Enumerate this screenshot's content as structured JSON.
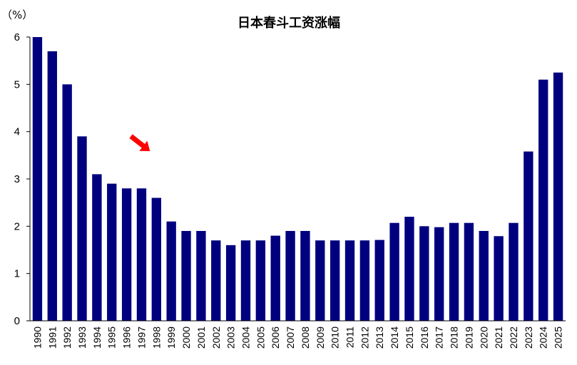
{
  "chart_data": {
    "type": "bar",
    "title": "日本春斗工资涨幅",
    "unit_label": "（%）",
    "xlabel": "",
    "ylabel": "",
    "ylim": [
      0,
      6
    ],
    "yticks": [
      0,
      1,
      2,
      3,
      4,
      5,
      6
    ],
    "grid": false,
    "bar_color": "#00007F",
    "annotation_color": "#FF0000",
    "annotation": {
      "type": "arrow",
      "points_to_category": "1998"
    },
    "categories": [
      "1990",
      "1991",
      "1992",
      "1993",
      "1994",
      "1995",
      "1996",
      "1997",
      "1998",
      "1999",
      "2000",
      "2001",
      "2002",
      "2003",
      "2004",
      "2005",
      "2006",
      "2007",
      "2008",
      "2009",
      "2010",
      "2011",
      "2012",
      "2013",
      "2014",
      "2015",
      "2016",
      "2017",
      "2018",
      "2019",
      "2020",
      "2021",
      "2022",
      "2023",
      "2024",
      "2025"
    ],
    "values": [
      6.0,
      5.7,
      5.0,
      3.9,
      3.1,
      2.9,
      2.8,
      2.8,
      2.6,
      2.1,
      1.9,
      1.9,
      1.7,
      1.6,
      1.7,
      1.7,
      1.8,
      1.9,
      1.9,
      1.7,
      1.7,
      1.7,
      1.7,
      1.71,
      2.07,
      2.2,
      2.0,
      1.98,
      2.07,
      2.07,
      1.9,
      1.79,
      2.07,
      3.58,
      5.1,
      5.25
    ]
  }
}
